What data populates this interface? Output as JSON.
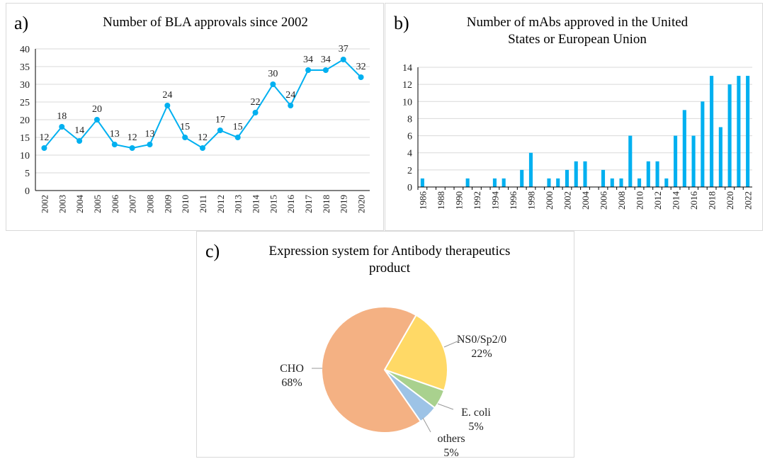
{
  "chart_data": [
    {
      "type": "line",
      "panel_label": "a)",
      "title": "Number of BLA approvals since 2002",
      "categories": [
        "2002",
        "2003",
        "2004",
        "2005",
        "2006",
        "2007",
        "2008",
        "2009",
        "2010",
        "2011",
        "2012",
        "2013",
        "2014",
        "2015",
        "2016",
        "2017",
        "2018",
        "2019",
        "2020"
      ],
      "values": [
        12,
        18,
        14,
        20,
        13,
        12,
        13,
        24,
        15,
        12,
        17,
        15,
        22,
        30,
        24,
        34,
        34,
        37,
        32
      ],
      "ylim": [
        0,
        40
      ],
      "yticks": [
        0,
        5,
        10,
        15,
        20,
        25,
        30,
        35,
        40
      ],
      "color": "#00B0F0",
      "grid": true
    },
    {
      "type": "bar",
      "panel_label": "b)",
      "title": "Number of mAbs approved in the United States or European Union",
      "title_lines": [
        "Number of mAbs approved in the United",
        "States or European Union"
      ],
      "categories": [
        "1986",
        "1987",
        "1988",
        "1989",
        "1990",
        "1991",
        "1992",
        "1993",
        "1994",
        "1995",
        "1996",
        "1997",
        "1998",
        "1999",
        "2000",
        "2001",
        "2002",
        "2003",
        "2004",
        "2005",
        "2006",
        "2007",
        "2008",
        "2009",
        "2010",
        "2011",
        "2012",
        "2013",
        "2014",
        "2015",
        "2016",
        "2017",
        "2018",
        "2019",
        "2020",
        "2021",
        "2022"
      ],
      "tick_labels": [
        "1986",
        "1988",
        "1990",
        "1992",
        "1994",
        "1996",
        "1998",
        "2000",
        "2002",
        "2004",
        "2006",
        "2008",
        "2010",
        "2012",
        "2014",
        "2016",
        "2018",
        "2020",
        "2022"
      ],
      "values": [
        1,
        0,
        0,
        0,
        0,
        1,
        0,
        0,
        1,
        1,
        0,
        2,
        4,
        0,
        1,
        1,
        2,
        3,
        3,
        0,
        2,
        1,
        1,
        6,
        1,
        3,
        3,
        1,
        6,
        9,
        6,
        10,
        13,
        7,
        12,
        13,
        13
      ],
      "ylim": [
        0,
        14
      ],
      "yticks": [
        0,
        2,
        4,
        6,
        8,
        10,
        12,
        14
      ],
      "color": "#00B0F0",
      "grid": true
    },
    {
      "type": "pie",
      "panel_label": "c)",
      "title": "Expression system for Antibody therapeutics product",
      "title_lines": [
        "Expression system for Antibody therapeutics",
        "product"
      ],
      "slices": [
        {
          "name": "NS0/Sp2/0",
          "value": 22,
          "label": "22%",
          "color": "#FFD966"
        },
        {
          "name": "E. coli",
          "value": 5,
          "label": "5%",
          "color": "#A9D18E"
        },
        {
          "name": "others",
          "value": 5,
          "label": "5%",
          "color": "#9DC3E6"
        },
        {
          "name": "CHO",
          "value": 68,
          "label": "68%",
          "color": "#F4B183"
        }
      ]
    }
  ]
}
